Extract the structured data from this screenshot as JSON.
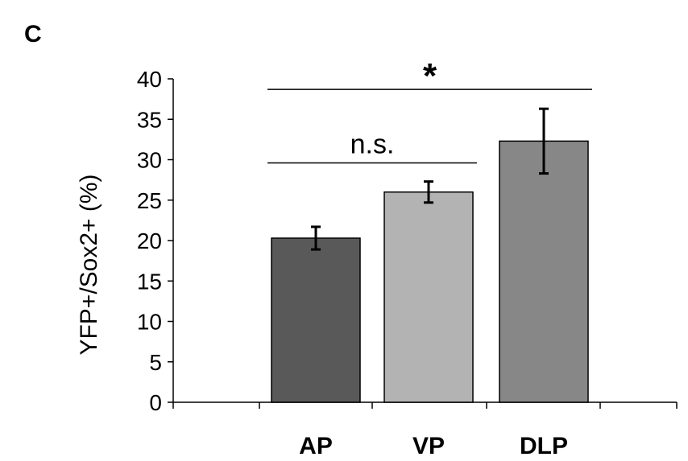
{
  "panel_label": "C",
  "chart_data": {
    "type": "bar",
    "categories": [
      "AP",
      "VP",
      "DLP"
    ],
    "values": [
      20.3,
      26.0,
      32.3
    ],
    "errors": [
      1.4,
      1.3,
      4.0
    ],
    "colors": [
      "#595959",
      "#b3b3b3",
      "#878787"
    ],
    "title": "",
    "xlabel": "",
    "ylabel": "YFP+/Sox2+   (%)",
    "ylim": [
      0,
      40
    ],
    "yticks": [
      0,
      5,
      10,
      15,
      20,
      25,
      30,
      35,
      40
    ],
    "grid": false,
    "legend": "none",
    "annotations": [
      {
        "label": "n.s.",
        "from": "AP",
        "to": "VP",
        "y": 29.6
      },
      {
        "label": "*",
        "from": "AP",
        "to": "DLP",
        "y": 38.7
      }
    ]
  }
}
